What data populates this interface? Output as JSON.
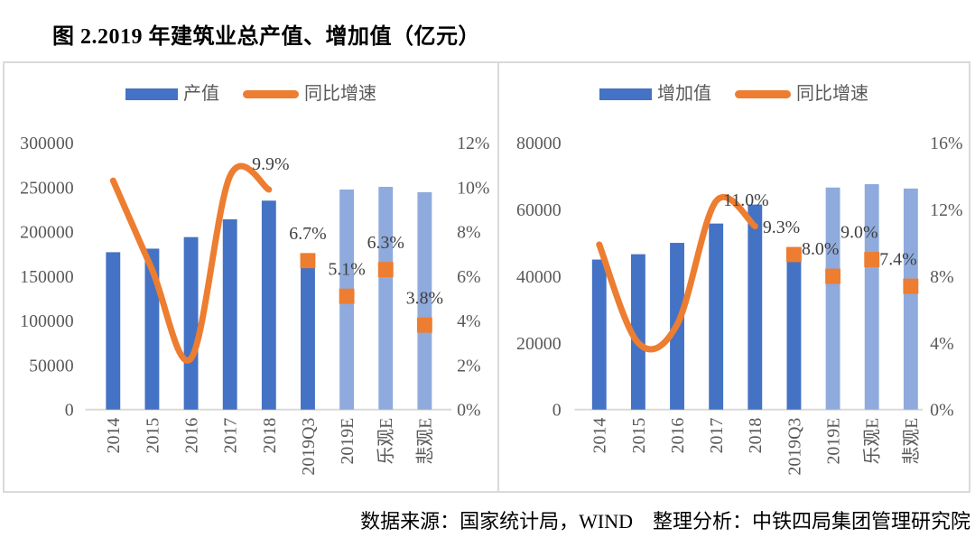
{
  "title": "图 2.2019 年建筑业总产值、增加值（亿元）",
  "footer": "数据来源：国家统计局，WIND　整理分析：中铁四局集团管理研究院",
  "colors": {
    "bar_actual": "#4472C4",
    "bar_forecast": "#8FAADC",
    "line": "#ED7D31",
    "axis_text": "#595959",
    "panel_border": "#DADADA"
  },
  "chart_data": [
    {
      "type": "bar",
      "legend": {
        "bar_label": "产值",
        "line_label": "同比增速"
      },
      "categories": [
        "2014",
        "2015",
        "2016",
        "2017",
        "2018",
        "2019Q3",
        "2019E",
        "乐观E",
        "悲观E"
      ],
      "bar_values": [
        177000,
        181000,
        194000,
        214000,
        235000,
        161000,
        247500,
        250500,
        244500
      ],
      "bar_forecast_from": 6,
      "line_values_pct": [
        10.3,
        6.3,
        2.3,
        10.5,
        9.9
      ],
      "line_end_label": "9.9%",
      "markers": [
        {
          "category": "2019Q3",
          "value_pct": 6.7,
          "label": "6.7%"
        },
        {
          "category": "2019E",
          "value_pct": 5.1,
          "label": "5.1%"
        },
        {
          "category": "乐观E",
          "value_pct": 6.3,
          "label": "6.3%"
        },
        {
          "category": "悲观E",
          "value_pct": 3.8,
          "label": "3.8%"
        }
      ],
      "left_axis": {
        "min": 0,
        "max": 300000,
        "tick_labels": [
          "0",
          "50000",
          "100000",
          "150000",
          "200000",
          "250000",
          "300000"
        ]
      },
      "right_axis": {
        "min": 0,
        "max": 12,
        "tick_labels": [
          "0%",
          "2%",
          "4%",
          "6%",
          "8%",
          "10%",
          "12%"
        ]
      },
      "grid": false,
      "legend_position": "top"
    },
    {
      "type": "bar",
      "legend": {
        "bar_label": "增加值",
        "line_label": "同比增速"
      },
      "categories": [
        "2014",
        "2015",
        "2016",
        "2017",
        "2018",
        "2019Q3",
        "2019E",
        "乐观E",
        "悲观E"
      ],
      "bar_values": [
        45000,
        46600,
        50000,
        55800,
        61500,
        44800,
        66600,
        67600,
        66300
      ],
      "bar_forecast_from": 6,
      "line_values_pct": [
        9.9,
        4.0,
        5.1,
        12.5,
        11.0
      ],
      "line_end_label": "11.0%",
      "markers": [
        {
          "category": "2019Q3",
          "value_pct": 9.3,
          "label": "9.3%"
        },
        {
          "category": "2019E",
          "value_pct": 8.0,
          "label": "8.0%"
        },
        {
          "category": "乐观E",
          "value_pct": 9.0,
          "label": "9.0%"
        },
        {
          "category": "悲观E",
          "value_pct": 7.4,
          "label": "7.4%"
        }
      ],
      "left_axis": {
        "min": 0,
        "max": 80000,
        "tick_labels": [
          "0",
          "20000",
          "40000",
          "60000",
          "80000"
        ]
      },
      "right_axis": {
        "min": 0,
        "max": 16,
        "tick_labels": [
          "0%",
          "4%",
          "8%",
          "12%",
          "16%"
        ]
      },
      "grid": false,
      "legend_position": "top"
    }
  ]
}
